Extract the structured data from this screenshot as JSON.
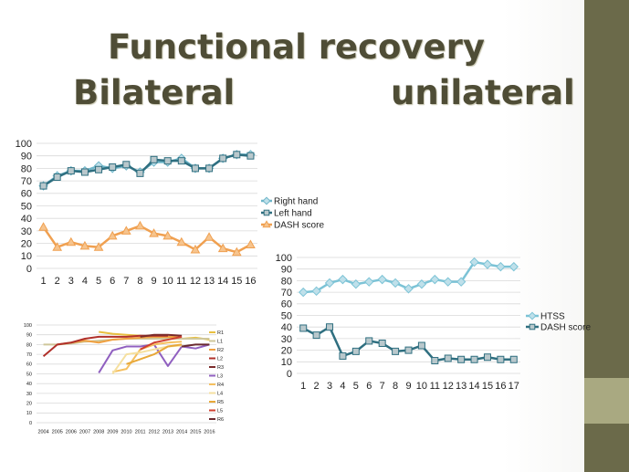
{
  "slide": {
    "title": "Functional recovery",
    "left_heading": "Bilateral",
    "right_heading": "unilateral",
    "colors": {
      "stripe": "#6b6a4a",
      "accent": "#a9a981",
      "title": "#4f4d36"
    }
  },
  "chart_data": [
    {
      "type": "line",
      "categories": [
        "1",
        "2",
        "3",
        "4",
        "5",
        "6",
        "7",
        "8",
        "9",
        "10",
        "11",
        "12",
        "13",
        "14",
        "15",
        "16"
      ],
      "ylim": [
        0,
        100
      ],
      "yticks": [
        0,
        10,
        20,
        30,
        40,
        50,
        60,
        70,
        80,
        90,
        100
      ],
      "grid": true,
      "legend": "right",
      "series": [
        {
          "name": "Right hand",
          "color": "#6fb6c9",
          "marker": "diamond",
          "values": [
            66,
            74,
            78,
            78,
            82,
            80,
            82,
            77,
            85,
            85,
            88,
            80,
            80,
            88,
            91,
            91
          ]
        },
        {
          "name": "Left hand",
          "color": "#2f6f80",
          "marker": "square",
          "values": [
            66,
            73,
            78,
            77,
            79,
            81,
            83,
            76,
            87,
            86,
            86,
            80,
            80,
            88,
            91,
            90
          ]
        },
        {
          "name": "DASH score",
          "color": "#f0a050",
          "marker": "triangle",
          "values": [
            33,
            17,
            21,
            18,
            17,
            26,
            30,
            34,
            28,
            26,
            21,
            15,
            25,
            16,
            13,
            19
          ]
        }
      ]
    },
    {
      "type": "line",
      "categories": [
        "1",
        "2",
        "3",
        "4",
        "5",
        "6",
        "7",
        "8",
        "9",
        "10",
        "11",
        "12",
        "13",
        "14",
        "15",
        "16",
        "17"
      ],
      "ylim": [
        0,
        100
      ],
      "yticks": [
        0,
        10,
        20,
        30,
        40,
        50,
        60,
        70,
        80,
        90,
        100
      ],
      "grid": true,
      "legend": "right",
      "series": [
        {
          "name": "HTSS",
          "color": "#7cc3d6",
          "marker": "diamond",
          "values": [
            70,
            71,
            78,
            81,
            77,
            79,
            81,
            78,
            73,
            77,
            81,
            79,
            79,
            96,
            94,
            92,
            92
          ]
        },
        {
          "name": "DASH score",
          "color": "#2f6f80",
          "marker": "square",
          "values": [
            39,
            33,
            40,
            15,
            19,
            28,
            26,
            19,
            20,
            24,
            11,
            13,
            12,
            12,
            14,
            12,
            12
          ]
        }
      ]
    },
    {
      "type": "line",
      "categories": [
        "2004",
        "2005",
        "2006",
        "2007",
        "2008",
        "2009",
        "2010",
        "2011",
        "2012",
        "2013",
        "2014",
        "2015",
        "2016"
      ],
      "ylim": [
        0,
        100
      ],
      "yticks": [
        0,
        10,
        20,
        30,
        40,
        50,
        60,
        70,
        80,
        90,
        100
      ],
      "grid": true,
      "legend": "right",
      "series": [
        {
          "name": "R1",
          "color": "#e8c040",
          "values": [
            null,
            null,
            null,
            null,
            93,
            91,
            90,
            89,
            88,
            87,
            86,
            87,
            85
          ]
        },
        {
          "name": "L1",
          "color": "#cfc79a",
          "values": [
            80,
            80,
            81,
            83,
            84,
            85,
            86,
            86,
            86,
            86,
            86,
            86,
            86
          ]
        },
        {
          "name": "R2",
          "color": "#f0a040",
          "values": [
            null,
            80,
            82,
            84,
            82,
            85,
            86,
            87,
            88,
            88,
            88,
            null,
            null
          ]
        },
        {
          "name": "L2",
          "color": "#b0302a",
          "values": [
            68,
            80,
            82,
            86,
            88,
            88,
            88,
            89,
            89,
            89,
            null,
            null,
            null
          ]
        },
        {
          "name": "R3",
          "color": "#7a2a2a",
          "values": [
            null,
            null,
            null,
            null,
            null,
            null,
            null,
            88,
            90,
            90,
            89,
            null,
            null
          ]
        },
        {
          "name": "L3",
          "color": "#9060c0",
          "values": [
            null,
            null,
            null,
            null,
            51,
            74,
            78,
            78,
            80,
            58,
            78,
            76,
            80
          ]
        },
        {
          "name": "R4",
          "color": "#f5c060",
          "values": [
            null,
            null,
            null,
            null,
            null,
            52,
            55,
            75,
            80,
            82,
            83,
            null,
            null
          ]
        },
        {
          "name": "L4",
          "color": "#f5e0a0",
          "values": [
            null,
            null,
            null,
            null,
            null,
            50,
            70,
            72,
            75,
            78,
            79,
            null,
            null
          ]
        },
        {
          "name": "R5",
          "color": "#e8a838",
          "values": [
            null,
            null,
            null,
            null,
            null,
            null,
            60,
            65,
            70,
            78,
            80,
            null,
            null
          ]
        },
        {
          "name": "L5",
          "color": "#d04030",
          "values": [
            null,
            null,
            null,
            null,
            null,
            null,
            null,
            75,
            82,
            85,
            88,
            null,
            null
          ]
        },
        {
          "name": "R6",
          "color": "#6a2a30",
          "values": [
            null,
            null,
            null,
            null,
            null,
            null,
            null,
            null,
            null,
            null,
            78,
            80,
            80
          ]
        }
      ]
    }
  ]
}
